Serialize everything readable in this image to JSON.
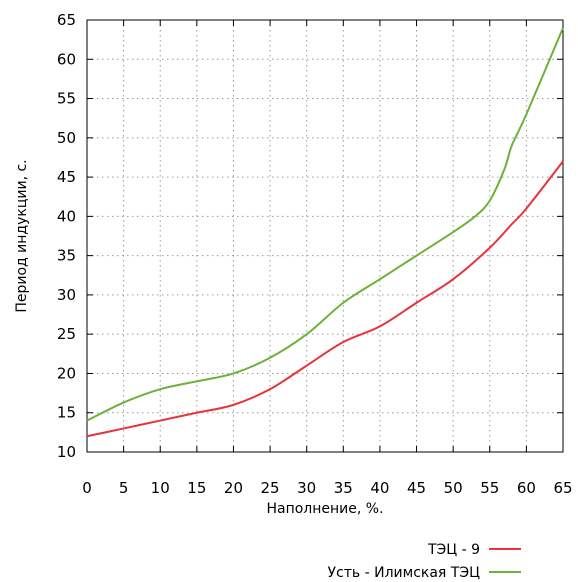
{
  "chart_data": {
    "type": "line",
    "title": "",
    "xlabel": "Наполнение, %.",
    "ylabel": "Период индукции, с.",
    "xlim": [
      0,
      65
    ],
    "ylim": [
      10,
      65
    ],
    "xticks": [
      0,
      5,
      10,
      15,
      20,
      25,
      30,
      35,
      40,
      45,
      50,
      55,
      60,
      65
    ],
    "yticks": [
      10,
      15,
      20,
      25,
      30,
      35,
      40,
      45,
      50,
      55,
      60,
      65
    ],
    "grid": true,
    "legend_position": "bottom-right",
    "series": [
      {
        "name": "ТЭЦ - 9",
        "color": "#e8333a",
        "x": [
          0,
          5,
          10,
          15,
          20,
          25,
          30,
          35,
          40,
          45,
          50,
          55,
          58,
          60,
          65
        ],
        "y": [
          12,
          13,
          14,
          15,
          16,
          18,
          21,
          24,
          26,
          29,
          32,
          36,
          39,
          41,
          47
        ]
      },
      {
        "name": "Усть - Илимская ТЭЦ",
        "color": "#6ab23a",
        "x": [
          0,
          5,
          10,
          15,
          20,
          25,
          30,
          35,
          40,
          45,
          50,
          53,
          55,
          57,
          58,
          60,
          65
        ],
        "y": [
          14,
          16.3,
          18,
          19,
          20,
          22,
          25,
          29,
          32,
          35,
          38,
          40,
          42,
          46,
          49,
          53,
          64
        ]
      }
    ]
  }
}
